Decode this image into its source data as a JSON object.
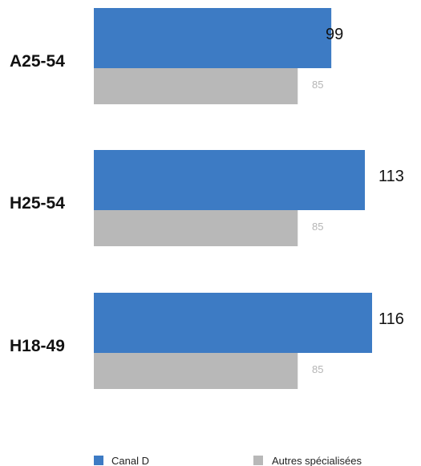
{
  "chart_data": {
    "type": "bar",
    "orientation": "horizontal",
    "categories": [
      "A25-54",
      "H25-54",
      "H18-49"
    ],
    "series": [
      {
        "name": "Canal D",
        "values": [
          99,
          113,
          116
        ],
        "color": "#3D7BC4"
      },
      {
        "name": "Autres spécialisées",
        "values": [
          85,
          85,
          85
        ],
        "color": "#B8B8B8"
      }
    ],
    "value_labels": {
      "series_0": [
        "99",
        "113",
        "116"
      ],
      "series_1": [
        "85",
        "85",
        "85"
      ]
    },
    "title": "",
    "xlabel": "",
    "ylabel": "",
    "xlim": [
      0,
      116
    ],
    "grid": false,
    "legend": {
      "position": "bottom"
    }
  }
}
